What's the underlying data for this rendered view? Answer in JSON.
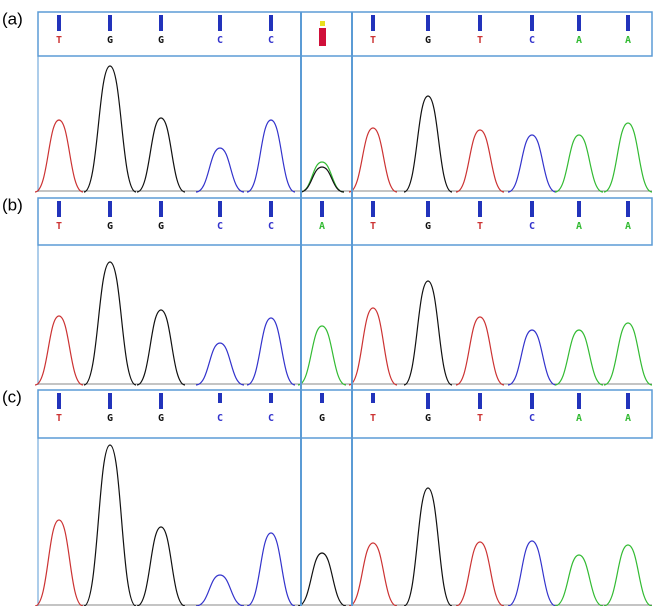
{
  "colors": {
    "A": "#33bb33",
    "C": "#3333cc",
    "G": "#111111",
    "T": "#cc3333"
  },
  "panels": [
    {
      "label": "(a)",
      "bases": [
        "T",
        "G",
        "G",
        "C",
        "C",
        null,
        "T",
        "G",
        "T",
        "C",
        "A",
        "A"
      ]
    },
    {
      "label": "(b)",
      "bases": [
        "T",
        "G",
        "G",
        "C",
        "C",
        "A",
        "T",
        "G",
        "T",
        "C",
        "A",
        "A"
      ]
    },
    {
      "label": "(c)",
      "bases": [
        "T",
        "G",
        "G",
        "C",
        "C",
        "G",
        "T",
        "G",
        "T",
        "C",
        "A",
        "A"
      ]
    }
  ]
}
